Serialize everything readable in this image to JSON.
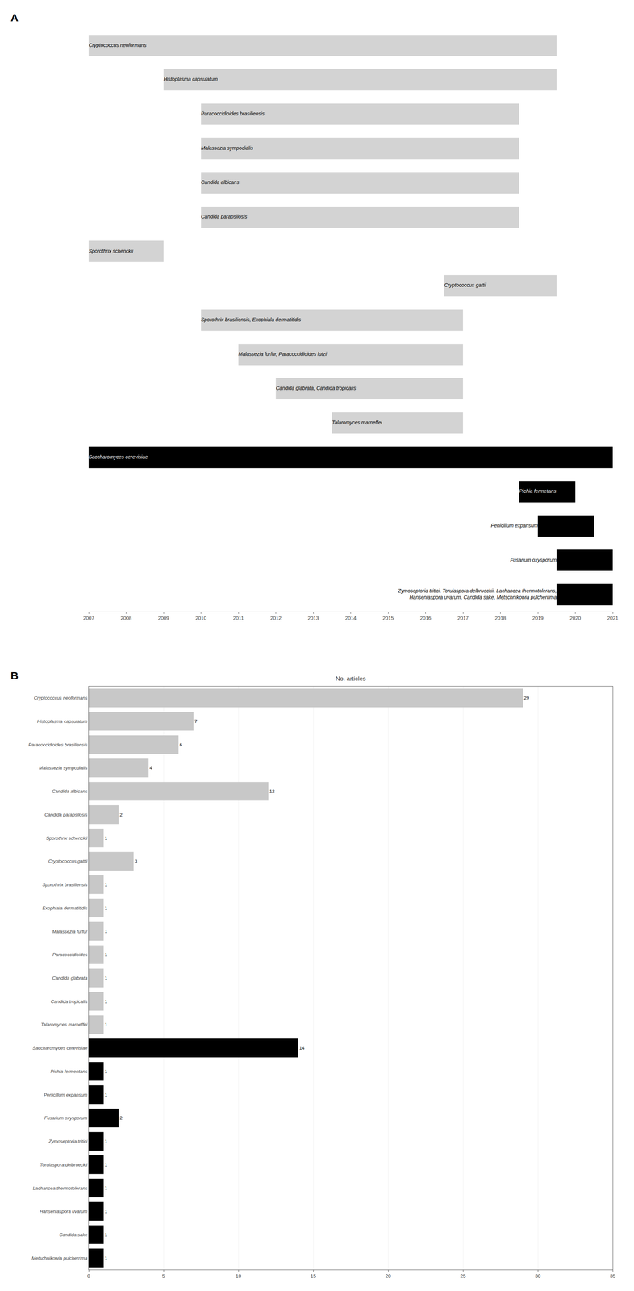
{
  "chart_data": [
    {
      "type": "timeline",
      "orientation": "horizontal",
      "categories": [
        "Cryptococcus neoformans",
        "Histoplasma capsulatum",
        "Paracoccidioides brasiliensis",
        "Malassezia sympodialis",
        "Candida albicans",
        "Candida parapsilosis",
        "Sporothrix schenckii",
        "Cryptococcus gattii",
        "Sporothrix brasiliensis, Exophiala dermatitidis",
        "Malassezia furfur, Paracoccidioides lutzii",
        "Candida glabrata, Candida tropicalis",
        "Talaromyces marneffei",
        "Saccharomyces cerevisiae",
        "Pichia fermetans",
        "Penicillum expansum",
        "Fusarium oxysporum",
        "Zymoseptoria tritici, Torulaspora delbrueckii, Lachancea thermotolerans,\nHanseniaspora uvarum, Candida sake, Metschnikowia pulcherrima"
      ],
      "start": [
        2007,
        2009,
        2010,
        2010,
        2010,
        2010,
        2007,
        2016.5,
        2010,
        2011,
        2012,
        2013.5,
        2007,
        2018.5,
        2019.0,
        2019.5,
        2019.5
      ],
      "end": [
        2019.5,
        2019.5,
        2018.5,
        2018.5,
        2018.5,
        2018.5,
        2009.0,
        2019.5,
        2017.0,
        2017.0,
        2017.0,
        2017.0,
        2021,
        2020.0,
        2020.5,
        2021,
        2021
      ],
      "colors": [
        "#d3d3d3",
        "#d3d3d3",
        "#d3d3d3",
        "#d3d3d3",
        "#d3d3d3",
        "#d3d3d3",
        "#d3d3d3",
        "#d3d3d3",
        "#d3d3d3",
        "#d3d3d3",
        "#d3d3d3",
        "#d3d3d3",
        "#000000",
        "#000000",
        "#000000",
        "#000000",
        "#000000"
      ],
      "xlim": [
        2007,
        2021
      ],
      "xticks": [
        2007,
        2008,
        2009,
        2010,
        2011,
        2012,
        2013,
        2014,
        2015,
        2016,
        2017,
        2018,
        2019,
        2020,
        2021
      ],
      "grid": false,
      "tick_labels": "x",
      "annotations": [
        "A"
      ]
    },
    {
      "type": "bar",
      "orientation": "horizontal",
      "title": "No. articles",
      "categories": [
        "Cryptococcus neoformans",
        "Histoplasma capsulatum",
        "Paracoccidioides brasiliensis",
        "Malassezia sympodialis",
        "Candida albicans",
        "Candida parapsilosis",
        "Sporothrix schenckii",
        "Cryptococcus gattii",
        "Sporothrix brasiliensis",
        "Exophiala dermatitidis",
        "Malassezia furfur",
        "Paracoccidioides",
        "Candida glabrata",
        "Candida tropicalis",
        "Talaromyces marneffei",
        "Saccharomyces cerevisiae",
        "Pichia fermentans",
        "Penicillum expansum",
        "Fusarium oxysporum",
        "Zymoseptoria tritici",
        "Torulaspora delbrueckii",
        "Lachancea thermotolerans",
        "Hanseniaspora uvarum",
        "Candida sake",
        "Metschnikowia pulcherrima"
      ],
      "values": [
        29,
        7,
        6,
        4,
        12,
        2,
        1,
        3,
        1,
        1,
        1,
        1,
        1,
        1,
        1,
        14,
        1,
        1,
        2,
        1,
        1,
        1,
        1,
        1,
        1
      ],
      "colors": [
        "#c8c8c8",
        "#c8c8c8",
        "#c8c8c8",
        "#c8c8c8",
        "#c8c8c8",
        "#c8c8c8",
        "#c8c8c8",
        "#c8c8c8",
        "#c8c8c8",
        "#c8c8c8",
        "#c8c8c8",
        "#c8c8c8",
        "#c8c8c8",
        "#c8c8c8",
        "#c8c8c8",
        "#000000",
        "#000000",
        "#000000",
        "#000000",
        "#000000",
        "#000000",
        "#000000",
        "#000000",
        "#000000",
        "#000000"
      ],
      "xlim": [
        0,
        35
      ],
      "xticks": [
        0,
        5,
        10,
        15,
        20,
        25,
        30,
        35
      ],
      "grid": true,
      "data_labels": true,
      "annotations": [
        "B"
      ]
    }
  ]
}
